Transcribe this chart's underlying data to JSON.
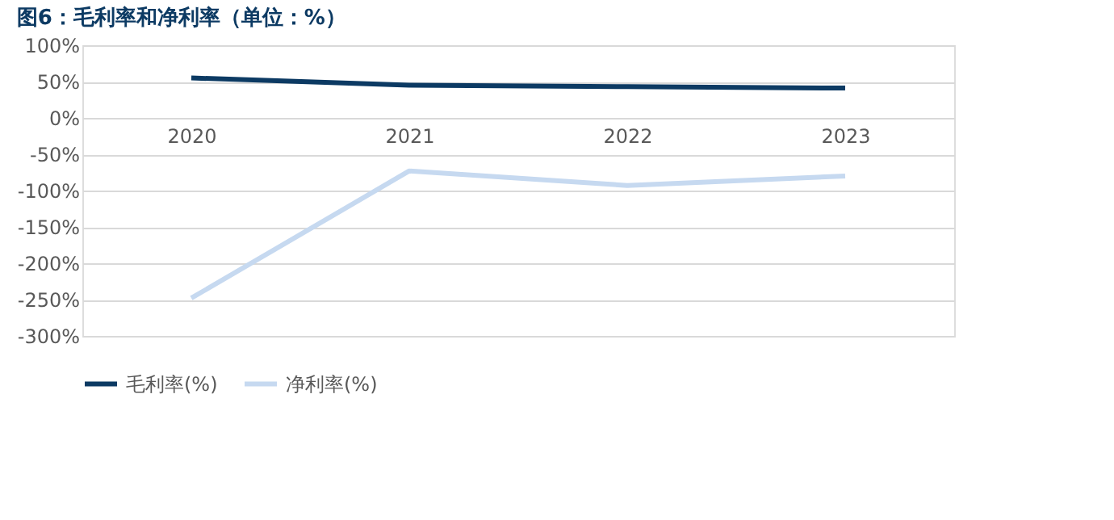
{
  "chart_data": {
    "type": "line",
    "title": "图6：毛利率和净利率（单位：%）",
    "categories": [
      "2020",
      "2021",
      "2022",
      "2023"
    ],
    "series": [
      {
        "name": "毛利率(%)",
        "color": "#0c3a63",
        "values": [
          55,
          45,
          43,
          41
        ]
      },
      {
        "name": "净利率(%)",
        "color": "#c6d9f0",
        "values": [
          -248,
          -73,
          -93,
          -80
        ]
      }
    ],
    "ylim": [
      -300,
      100
    ],
    "yticks": [
      {
        "value": -300,
        "label": "-300%"
      },
      {
        "value": -250,
        "label": "-250%"
      },
      {
        "value": -200,
        "label": "-200%"
      },
      {
        "value": -150,
        "label": "-150%"
      },
      {
        "value": -100,
        "label": "-100%"
      },
      {
        "value": -50,
        "label": "-50%"
      },
      {
        "value": 0,
        "label": "0%"
      },
      {
        "value": 50,
        "label": "50%"
      },
      {
        "value": 100,
        "label": "100%"
      }
    ],
    "grid": "y",
    "legend": "bottom",
    "marker": "none",
    "line_style": "solid"
  }
}
